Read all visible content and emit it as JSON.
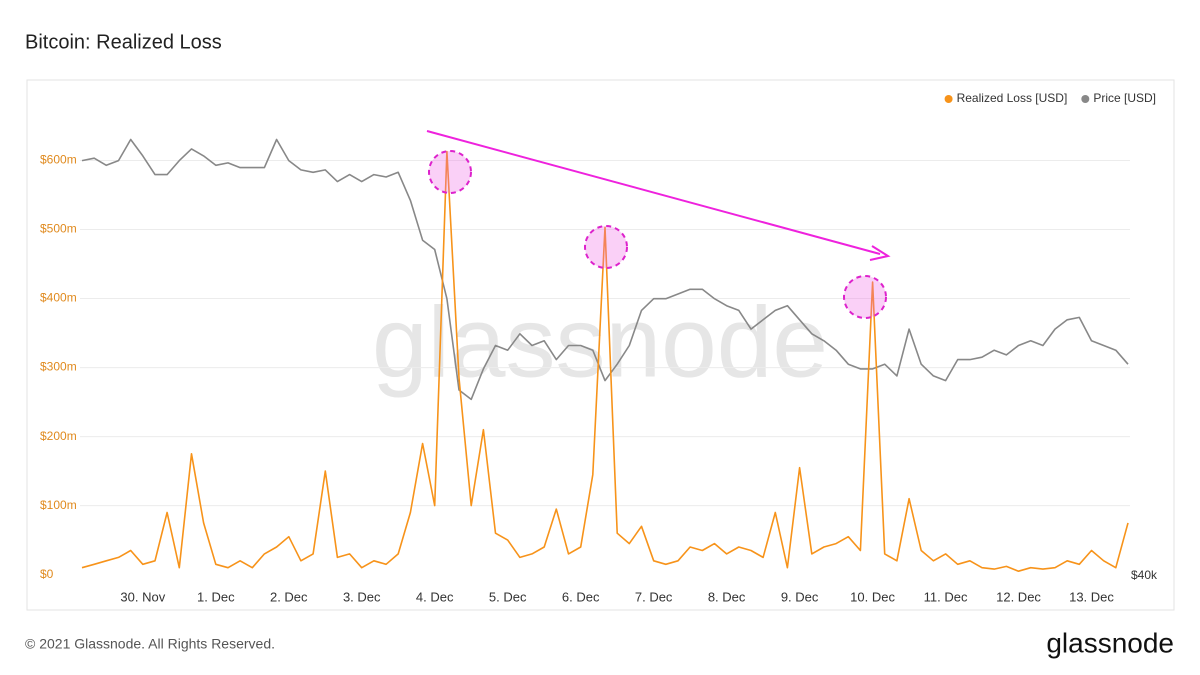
{
  "chart_data": {
    "type": "line",
    "title": "Bitcoin: Realized Loss",
    "watermark": "glassnode",
    "footer": "© 2021 Glassnode. All Rights Reserved.",
    "brand": "glassnode",
    "legend": "top-right",
    "grid": true,
    "categories": [
      null,
      null,
      null,
      null,
      null,
      "30. Nov",
      null,
      null,
      null,
      null,
      null,
      "1. Dec",
      null,
      null,
      null,
      null,
      null,
      "2. Dec",
      null,
      null,
      null,
      null,
      null,
      "3. Dec",
      null,
      null,
      null,
      null,
      null,
      "4. Dec",
      null,
      null,
      null,
      null,
      null,
      "5. Dec",
      null,
      null,
      null,
      null,
      null,
      "6. Dec",
      null,
      null,
      null,
      null,
      null,
      "7. Dec",
      null,
      null,
      null,
      null,
      null,
      "8. Dec",
      null,
      null,
      null,
      null,
      null,
      "9. Dec",
      null,
      null,
      null,
      null,
      null,
      "10. Dec",
      null,
      null,
      null,
      null,
      null,
      "11. Dec",
      null,
      null,
      null,
      null,
      null,
      "12. Dec",
      null,
      null,
      null,
      null,
      null,
      "13. Dec",
      null,
      null,
      null
    ],
    "ylim": [
      -15000000,
      705000000
    ],
    "yticks": [
      {
        "value": 0,
        "label": "$0"
      },
      {
        "value": 100000000,
        "label": "$100m"
      },
      {
        "value": 200000000,
        "label": "$200m"
      },
      {
        "value": 300000000,
        "label": "$300m"
      },
      {
        "value": 400000000,
        "label": "$400m"
      },
      {
        "value": 500000000,
        "label": "$500m"
      },
      {
        "value": 600000000,
        "label": "$600m"
      }
    ],
    "y2lim": [
      39570,
      60800
    ],
    "y2ticks": [
      {
        "value": 40000,
        "label": "$40k"
      }
    ],
    "series": [
      {
        "name": "Realized Loss [USD]",
        "color": "#f7931a",
        "values": [
          10000000,
          15000000,
          20000000,
          25000000,
          35000000,
          15000000,
          20000000,
          90000000,
          10000000,
          175000000,
          75000000,
          15000000,
          10000000,
          20000000,
          10000000,
          30000000,
          40000000,
          55000000,
          20000000,
          30000000,
          150000000,
          25000000,
          30000000,
          10000000,
          20000000,
          15000000,
          30000000,
          90000000,
          190000000,
          100000000,
          613000000,
          285000000,
          100000000,
          210000000,
          60000000,
          50000000,
          25000000,
          30000000,
          40000000,
          95000000,
          30000000,
          40000000,
          145000000,
          503000000,
          60000000,
          45000000,
          70000000,
          20000000,
          15000000,
          20000000,
          40000000,
          35000000,
          45000000,
          30000000,
          40000000,
          35000000,
          25000000,
          90000000,
          10000000,
          155000000,
          30000000,
          40000000,
          45000000,
          55000000,
          35000000,
          424000000,
          30000000,
          20000000,
          110000000,
          35000000,
          20000000,
          30000000,
          15000000,
          20000000,
          10000000,
          8000000,
          12000000,
          5000000,
          10000000,
          8000000,
          10000000,
          20000000,
          15000000,
          35000000,
          20000000,
          10000000,
          75000000
        ]
      },
      {
        "name": "Price [USD]",
        "color": "#888888",
        "axis": "y2",
        "values": [
          57700,
          57800,
          57500,
          57700,
          58600,
          57900,
          57100,
          57100,
          57700,
          58200,
          57900,
          57500,
          57600,
          57400,
          57400,
          57400,
          58600,
          57700,
          57300,
          57200,
          57300,
          56800,
          57100,
          56800,
          57100,
          57000,
          57200,
          56000,
          54300,
          53900,
          51800,
          47900,
          47500,
          48800,
          49800,
          49600,
          50300,
          49800,
          50000,
          49200,
          49800,
          49800,
          49600,
          48300,
          49000,
          49800,
          51300,
          51800,
          51800,
          52000,
          52200,
          52200,
          51800,
          51500,
          51300,
          50500,
          50900,
          51300,
          51500,
          50900,
          50300,
          50000,
          49600,
          49000,
          48800,
          48800,
          49000,
          48500,
          50500,
          49000,
          48500,
          48300,
          49200,
          49200,
          49300,
          49600,
          49400,
          49800,
          50000,
          49800,
          50500,
          50900,
          51000,
          50000,
          49800,
          49600,
          49000
        ]
      }
    ]
  }
}
